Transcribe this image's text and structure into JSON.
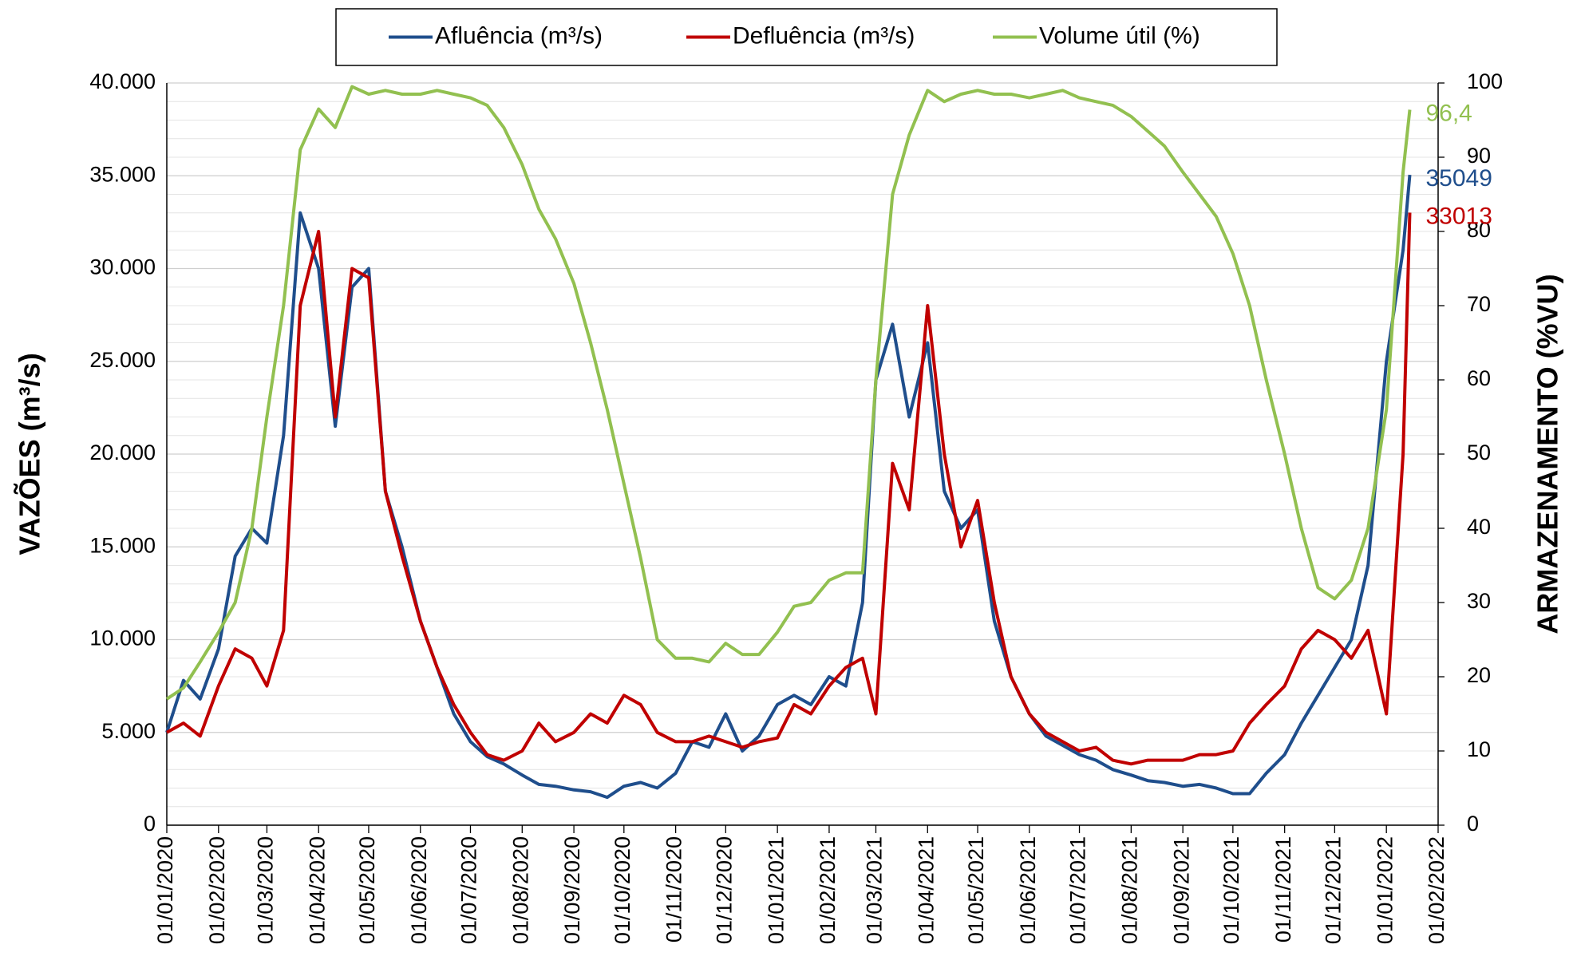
{
  "chart_data": {
    "type": "line",
    "ylabel": "VAZÕES (m³/s)",
    "y2label": "ARMAZENAMENTO (%VU)",
    "x": [
      "01/01/2020",
      "11/01/2020",
      "21/01/2020",
      "01/02/2020",
      "11/02/2020",
      "21/02/2020",
      "01/03/2020",
      "11/03/2020",
      "21/03/2020",
      "01/04/2020",
      "11/04/2020",
      "21/04/2020",
      "01/05/2020",
      "11/05/2020",
      "21/05/2020",
      "01/06/2020",
      "11/06/2020",
      "21/06/2020",
      "01/07/2020",
      "11/07/2020",
      "21/07/2020",
      "01/08/2020",
      "11/08/2020",
      "21/08/2020",
      "01/09/2020",
      "11/09/2020",
      "21/09/2020",
      "01/10/2020",
      "11/10/2020",
      "21/10/2020",
      "01/11/2020",
      "11/11/2020",
      "21/11/2020",
      "01/12/2020",
      "11/12/2020",
      "21/12/2020",
      "01/01/2021",
      "11/01/2021",
      "21/01/2021",
      "01/02/2021",
      "11/02/2021",
      "21/02/2021",
      "01/03/2021",
      "11/03/2021",
      "21/03/2021",
      "01/04/2021",
      "11/04/2021",
      "21/04/2021",
      "01/05/2021",
      "11/05/2021",
      "21/05/2021",
      "01/06/2021",
      "11/06/2021",
      "21/06/2021",
      "01/07/2021",
      "11/07/2021",
      "21/07/2021",
      "01/08/2021",
      "11/08/2021",
      "21/08/2021",
      "01/09/2021",
      "11/09/2021",
      "21/09/2021",
      "01/10/2021",
      "11/10/2021",
      "21/10/2021",
      "01/11/2021",
      "11/11/2021",
      "21/11/2021",
      "01/12/2021",
      "11/12/2021",
      "21/12/2021",
      "01/01/2022",
      "11/01/2022",
      "15/01/2022"
    ],
    "series": [
      {
        "name": "Afluência (m³/s)",
        "color": "#1f4e8c",
        "last_label": "35049",
        "values": [
          5000,
          7800,
          6800,
          9500,
          14500,
          16000,
          15200,
          21000,
          33000,
          30000,
          21500,
          29000,
          30000,
          18000,
          15000,
          11000,
          8500,
          6000,
          4500,
          3700,
          3300,
          2700,
          2200,
          2100,
          1900,
          1800,
          1500,
          2100,
          2300,
          2000,
          2800,
          4500,
          4200,
          6000,
          4000,
          4800,
          6500,
          7000,
          6500,
          8000,
          7500,
          12000,
          24000,
          27000,
          22000,
          26000,
          18000,
          16000,
          17000,
          11000,
          8000,
          6000,
          4800,
          4300,
          3800,
          3500,
          3000,
          2700,
          2400,
          2300,
          2100,
          2200,
          2000,
          1700,
          1700,
          2800,
          3800,
          5500,
          7000,
          8500,
          10000,
          14000,
          25000,
          31000,
          35049
        ]
      },
      {
        "name": "Defluência (m³/s)",
        "color": "#c00000",
        "last_label": "33013",
        "values": [
          5000,
          5500,
          4800,
          7500,
          9500,
          9000,
          7500,
          10500,
          28000,
          32000,
          22000,
          30000,
          29500,
          18000,
          14500,
          11000,
          8500,
          6500,
          5000,
          3800,
          3500,
          4000,
          5500,
          4500,
          5000,
          6000,
          5500,
          7000,
          6500,
          5000,
          4500,
          4500,
          4800,
          4500,
          4200,
          4500,
          4700,
          6500,
          6000,
          7500,
          8500,
          9000,
          6000,
          19500,
          17000,
          28000,
          20000,
          15000,
          17500,
          12000,
          8000,
          6000,
          5000,
          4500,
          4000,
          4200,
          3500,
          3300,
          3500,
          3500,
          3500,
          3800,
          3800,
          4000,
          5500,
          6500,
          7500,
          9500,
          10500,
          10000,
          9000,
          10500,
          6000,
          20000,
          33013
        ]
      },
      {
        "name": "Volume útil (%)",
        "color": "#92c050",
        "axis": "y2",
        "last_label": "96,4",
        "values": [
          17,
          18.5,
          22,
          26,
          30,
          40,
          55,
          70,
          91,
          96.5,
          94,
          99.5,
          98.5,
          99,
          98.5,
          98.5,
          99,
          98.5,
          98,
          97,
          94,
          89,
          83,
          79,
          73,
          65,
          56,
          46,
          36,
          25,
          22.5,
          22.5,
          22,
          24.5,
          23,
          23,
          26,
          29.5,
          30,
          33,
          34,
          34,
          60,
          85,
          93,
          99,
          97.5,
          98.5,
          99,
          98.5,
          98.5,
          98,
          98.5,
          99,
          98,
          97.5,
          97,
          95.5,
          93.5,
          91.5,
          88,
          85,
          82,
          77,
          70,
          60,
          50,
          40,
          32,
          30.5,
          33,
          40,
          56,
          88,
          96.4
        ]
      }
    ],
    "xlim": [
      "01/01/2020",
      "01/02/2022"
    ],
    "xticks": [
      "01/01/2020",
      "01/02/2020",
      "01/03/2020",
      "01/04/2020",
      "01/05/2020",
      "01/06/2020",
      "01/07/2020",
      "01/08/2020",
      "01/09/2020",
      "01/10/2020",
      "01/11/2020",
      "01/12/2020",
      "01/01/2021",
      "01/02/2021",
      "01/03/2021",
      "01/04/2021",
      "01/05/2021",
      "01/06/2021",
      "01/07/2021",
      "01/08/2021",
      "01/09/2021",
      "01/10/2021",
      "01/11/2021",
      "01/12/2021",
      "01/01/2022",
      "01/02/2022"
    ],
    "ylim": [
      0,
      40000
    ],
    "yticks": [
      0,
      {
        "value": 5000,
        "label": "5.000"
      },
      {
        "value": 10000,
        "label": "10.000"
      },
      {
        "value": 15000,
        "label": "15.000"
      },
      {
        "value": 20000,
        "label": "20.000"
      },
      {
        "value": 25000,
        "label": "25.000"
      },
      {
        "value": 30000,
        "label": "30.000"
      },
      {
        "value": 35000,
        "label": "35.000"
      },
      {
        "value": 40000,
        "label": "40.000"
      }
    ],
    "y_minor_step": 1000,
    "y2lim": [
      0,
      100
    ],
    "y2ticks": [
      0,
      10,
      20,
      30,
      40,
      50,
      60,
      70,
      80,
      90,
      100
    ],
    "grid": true,
    "legend": "top"
  }
}
